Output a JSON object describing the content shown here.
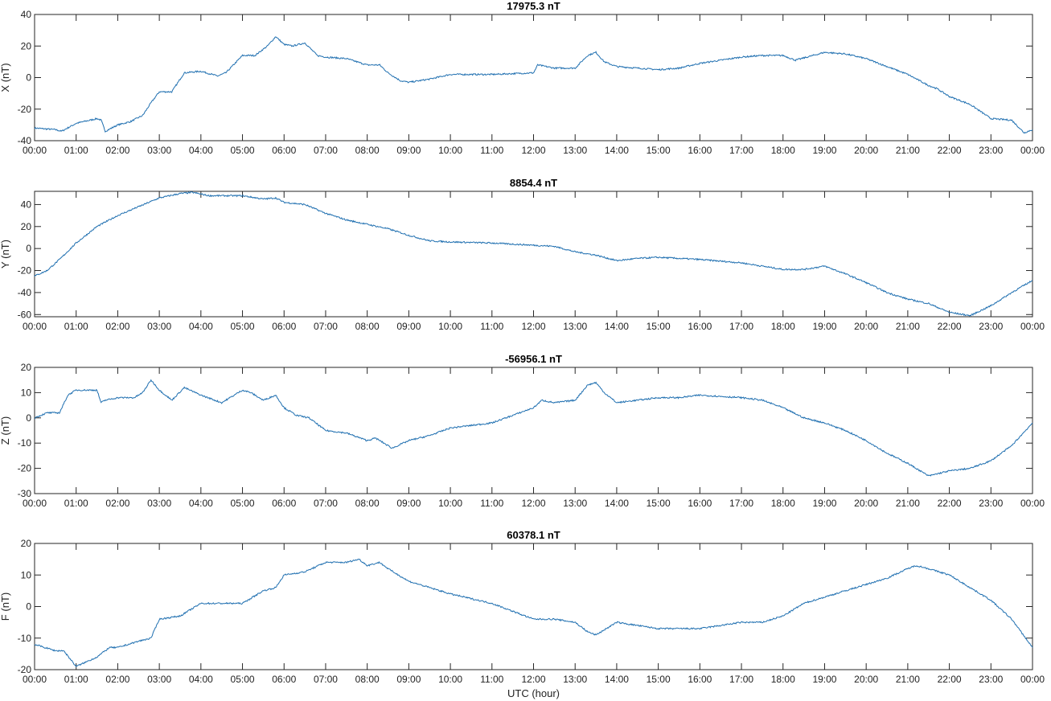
{
  "chart_data": [
    {
      "type": "line",
      "title": "17975.3 nT",
      "ylabel": "X (nT)",
      "xlabel": "",
      "ylim": [
        -40,
        40
      ],
      "yticks": [
        -40,
        -20,
        0,
        20,
        40
      ],
      "xlim": [
        0,
        24
      ],
      "xticks": [
        "00:00",
        "01:00",
        "02:00",
        "03:00",
        "04:00",
        "05:00",
        "06:00",
        "07:00",
        "08:00",
        "09:00",
        "10:00",
        "11:00",
        "12:00",
        "13:00",
        "14:00",
        "15:00",
        "16:00",
        "17:00",
        "18:00",
        "19:00",
        "20:00",
        "21:00",
        "22:00",
        "23:00",
        "00:00"
      ],
      "grid": false,
      "color": "#1f6fb0",
      "series": [
        {
          "x": [
            0,
            0.5,
            0.65,
            1,
            1.5,
            1.6,
            1.7,
            2,
            2.3,
            2.6,
            2.8,
            3,
            3.3,
            3.6,
            4,
            4.4,
            4.6,
            5,
            5.3,
            5.6,
            5.8,
            6,
            6.2,
            6.5,
            6.8,
            7,
            7.5,
            8,
            8.3,
            8.5,
            8.8,
            9,
            9.5,
            10,
            11,
            12,
            12.1,
            12.5,
            13,
            13.3,
            13.5,
            13.7,
            14,
            14.5,
            15,
            15.5,
            16,
            17,
            17.5,
            18,
            18.3,
            19,
            19.5,
            20,
            20.5,
            21,
            21.5,
            21.7,
            22,
            22.5,
            23,
            23.5,
            23.8,
            24
          ],
          "y": [
            -32,
            -33,
            -34,
            -29,
            -26,
            -27,
            -34,
            -30,
            -28,
            -24,
            -16,
            -9,
            -9,
            3,
            4,
            1,
            3,
            14,
            14,
            20,
            26,
            21,
            20,
            22,
            14,
            13,
            12,
            8,
            8,
            3,
            -2,
            -3,
            -1,
            2,
            2,
            3,
            8,
            6,
            6,
            14,
            16,
            10,
            7,
            6,
            5,
            6,
            9,
            13,
            14,
            14,
            11,
            16,
            15,
            12,
            7,
            2,
            -5,
            -7,
            -12,
            -17,
            -26,
            -27,
            -35,
            -33
          ]
        }
      ]
    },
    {
      "type": "line",
      "title": "8854.4 nT",
      "ylabel": "Y (nT)",
      "xlabel": "",
      "ylim": [
        -62,
        52
      ],
      "yticks": [
        -60,
        -40,
        -20,
        0,
        20,
        40
      ],
      "xlim": [
        0,
        24
      ],
      "xticks": [
        "00:00",
        "01:00",
        "02:00",
        "03:00",
        "04:00",
        "05:00",
        "06:00",
        "07:00",
        "08:00",
        "09:00",
        "10:00",
        "11:00",
        "12:00",
        "13:00",
        "14:00",
        "15:00",
        "16:00",
        "17:00",
        "18:00",
        "19:00",
        "20:00",
        "21:00",
        "22:00",
        "23:00",
        "00:00"
      ],
      "grid": false,
      "color": "#1f6fb0",
      "series": [
        {
          "x": [
            0,
            0.3,
            0.6,
            1,
            1.5,
            2,
            2.5,
            3,
            3.5,
            3.8,
            4.2,
            4.6,
            5,
            5.5,
            5.8,
            6,
            6.5,
            7,
            7.5,
            8,
            8.5,
            9,
            9.5,
            10,
            11,
            12,
            12.5,
            13,
            13.5,
            14,
            14.5,
            15,
            15.5,
            16,
            17,
            17.5,
            18,
            18.5,
            19,
            19.5,
            20,
            20.5,
            21,
            21.5,
            22,
            22.5,
            23,
            23.5,
            24
          ],
          "y": [
            -25,
            -20,
            -10,
            5,
            20,
            30,
            38,
            46,
            50,
            51,
            48,
            48,
            48,
            45,
            46,
            42,
            40,
            32,
            26,
            22,
            18,
            12,
            7,
            6,
            5,
            3,
            2,
            -3,
            -6,
            -11,
            -9,
            -8,
            -9,
            -10,
            -13,
            -16,
            -19,
            -19,
            -16,
            -23,
            -31,
            -40,
            -46,
            -50,
            -58,
            -61,
            -52,
            -40,
            -29
          ]
        }
      ]
    },
    {
      "type": "line",
      "title": "-56956.1 nT",
      "ylabel": "Z (nT)",
      "xlabel": "",
      "ylim": [
        -30,
        20
      ],
      "yticks": [
        -30,
        -20,
        -10,
        0,
        10,
        20
      ],
      "xlim": [
        0,
        24
      ],
      "xticks": [
        "00:00",
        "01:00",
        "02:00",
        "03:00",
        "04:00",
        "05:00",
        "06:00",
        "07:00",
        "08:00",
        "09:00",
        "10:00",
        "11:00",
        "12:00",
        "13:00",
        "14:00",
        "15:00",
        "16:00",
        "17:00",
        "18:00",
        "19:00",
        "20:00",
        "21:00",
        "22:00",
        "23:00",
        "00:00"
      ],
      "grid": false,
      "color": "#1f6fb0",
      "series": [
        {
          "x": [
            0,
            0.3,
            0.6,
            0.8,
            1,
            1.5,
            1.6,
            1.7,
            2,
            2.4,
            2.6,
            2.8,
            3,
            3.3,
            3.6,
            4,
            4.5,
            5,
            5.2,
            5.5,
            5.8,
            6,
            6.3,
            6.6,
            7,
            7.5,
            8,
            8.2,
            8.6,
            9,
            9.5,
            10,
            11,
            12,
            12.2,
            12.5,
            13,
            13.3,
            13.5,
            13.7,
            14,
            14.5,
            15,
            15.5,
            16,
            17,
            17.5,
            18,
            18.5,
            19,
            19.5,
            20,
            20.5,
            21,
            21.5,
            22,
            22.5,
            23,
            23.5,
            24
          ],
          "y": [
            0,
            2,
            2,
            9,
            11,
            11,
            6,
            7,
            8,
            8,
            10,
            15,
            11,
            7,
            12,
            9,
            6,
            11,
            10,
            7,
            9,
            4,
            1,
            0,
            -5,
            -6,
            -9,
            -8,
            -12,
            -9,
            -7,
            -4,
            -2,
            4,
            7,
            6,
            7,
            13,
            14,
            10,
            6,
            7,
            8,
            8,
            9,
            8,
            7,
            4,
            0,
            -2,
            -5,
            -9,
            -14,
            -18,
            -23,
            -21,
            -20,
            -17,
            -11,
            -2
          ]
        }
      ]
    },
    {
      "type": "line",
      "title": "60378.1 nT",
      "ylabel": "F (nT)",
      "xlabel": "UTC (hour)",
      "ylim": [
        -20,
        20
      ],
      "yticks": [
        -20,
        -10,
        0,
        10,
        20
      ],
      "xlim": [
        0,
        24
      ],
      "xticks": [
        "00:00",
        "01:00",
        "02:00",
        "03:00",
        "04:00",
        "05:00",
        "06:00",
        "07:00",
        "08:00",
        "09:00",
        "10:00",
        "11:00",
        "12:00",
        "13:00",
        "14:00",
        "15:00",
        "16:00",
        "17:00",
        "18:00",
        "19:00",
        "20:00",
        "21:00",
        "22:00",
        "23:00",
        "00:00"
      ],
      "grid": false,
      "color": "#1f6fb0",
      "series": [
        {
          "x": [
            0,
            0.5,
            0.7,
            1,
            1.5,
            1.8,
            2,
            2.5,
            2.8,
            3,
            3.5,
            4,
            4.5,
            5,
            5.5,
            5.8,
            6,
            6.5,
            7,
            7.5,
            7.8,
            8,
            8.3,
            8.5,
            9,
            9.5,
            10,
            11,
            12,
            12.5,
            13,
            13.3,
            13.5,
            14,
            15,
            15.5,
            16,
            16.5,
            17,
            17.5,
            18,
            18.5,
            19,
            19.5,
            20,
            20.5,
            21,
            21.2,
            21.5,
            22,
            22.5,
            23,
            23.5,
            24
          ],
          "y": [
            -12,
            -14,
            -14,
            -19,
            -16,
            -13,
            -13,
            -11,
            -10,
            -4,
            -3,
            1,
            1,
            1,
            5,
            6,
            10,
            11,
            14,
            14,
            15,
            13,
            14,
            12,
            8,
            6,
            4,
            1,
            -4,
            -4,
            -5,
            -8,
            -9,
            -5,
            -7,
            -7,
            -7,
            -6,
            -5,
            -5,
            -3,
            1,
            3,
            5,
            7,
            9,
            12,
            13,
            12,
            10,
            6,
            2,
            -4,
            -13
          ]
        }
      ]
    }
  ]
}
